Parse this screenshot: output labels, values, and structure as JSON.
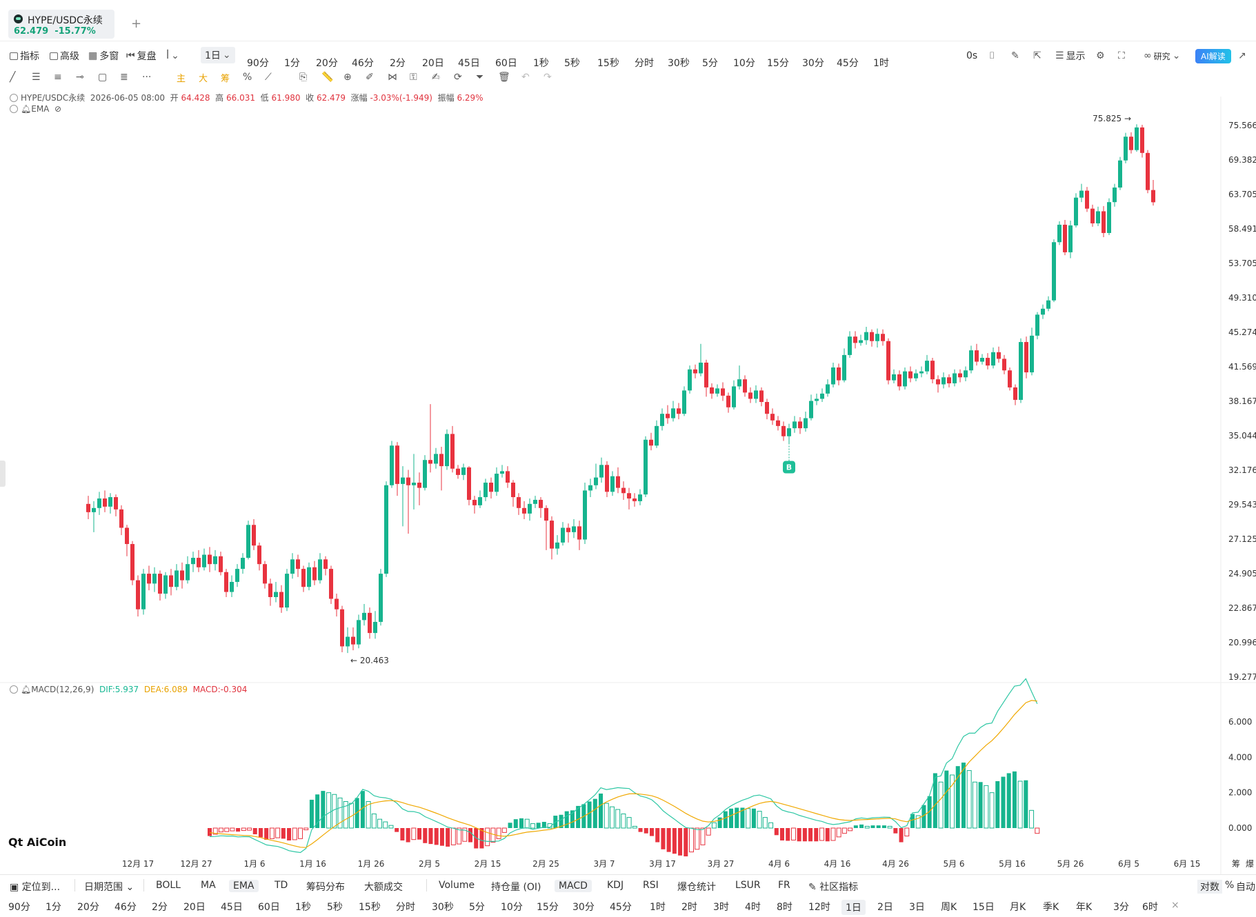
{
  "tab": {
    "title": "HYPE/USDC永续",
    "price": "62.479",
    "change": "-15.77%",
    "add": "+"
  },
  "toolbar1": {
    "indicator": "指标",
    "advanced": "高级",
    "multiwin": "多窗",
    "replay": "复盘",
    "interval_selected": "1日",
    "intervals": [
      "90分",
      "1分",
      "20分",
      "46分",
      "2分",
      "20日",
      "45日",
      "60日",
      "1秒",
      "5秒",
      "15秒",
      "分时",
      "30秒",
      "5分",
      "10分",
      "15分",
      "30分",
      "45分",
      "1时"
    ],
    "seconds": "0s",
    "display": "显示",
    "research": "研究",
    "ai": "AI解读"
  },
  "toolbar2": {
    "main": "主",
    "big": "大",
    "chip": "筹",
    "more": "···"
  },
  "info": {
    "symbol": "HYPE/USDC永续",
    "datetime": "2026-06-05 08:00",
    "open_label": "开",
    "open": "64.428",
    "high_label": "高",
    "high": "66.031",
    "low_label": "低",
    "low": "61.980",
    "close_label": "收",
    "close": "62.479",
    "change_label": "涨幅",
    "change": "-3.03%(-1.949)",
    "amp_label": "振幅",
    "amp": "6.29%",
    "ema": "EMA"
  },
  "macd_info": {
    "name": "MACD(12,26,9)",
    "dif": "DIF:5.937",
    "dea": "DEA:6.089",
    "macd": "MACD:-0.304"
  },
  "chart_data": {
    "type": "candlestick",
    "y_ticks": [
      "75.566",
      "69.382",
      "63.705",
      "58.491",
      "53.705",
      "49.310",
      "45.274",
      "41.569",
      "38.167",
      "35.044",
      "32.176",
      "29.543",
      "27.125",
      "24.905",
      "22.867",
      "20.996",
      "19.277"
    ],
    "macd_ticks": [
      "6.000",
      "4.000",
      "2.000",
      "0.000"
    ],
    "x_ticks": [
      "12月 17",
      "12月 27",
      "1月 6",
      "1月 16",
      "1月 26",
      "2月 5",
      "2月 15",
      "2月 25",
      "3月 7",
      "3月 17",
      "3月 27",
      "4月 6",
      "4月 16",
      "4月 26",
      "5月 6",
      "5月 16",
      "5月 26",
      "6月 5",
      "6月 15"
    ],
    "max_label": "75.825",
    "min_label": "20.463",
    "buy_marker": "B",
    "candles": [
      [
        29.6,
        29.0,
        30.2,
        28.5
      ],
      [
        29.0,
        29.3,
        29.8,
        27.6
      ],
      [
        29.3,
        30.0,
        30.5,
        28.8
      ],
      [
        30.0,
        29.4,
        30.6,
        29.0
      ],
      [
        29.4,
        30.1,
        30.4,
        28.9
      ],
      [
        30.1,
        29.2,
        30.3,
        28.7
      ],
      [
        29.2,
        27.9,
        29.5,
        27.4
      ],
      [
        27.9,
        26.8,
        28.1,
        26.0
      ],
      [
        26.8,
        24.5,
        27.0,
        24.2
      ],
      [
        24.5,
        22.8,
        24.8,
        22.4
      ],
      [
        22.8,
        24.9,
        25.2,
        22.5
      ],
      [
        24.9,
        24.3,
        25.4,
        23.9
      ],
      [
        24.3,
        24.9,
        25.3,
        23.8
      ],
      [
        24.9,
        23.7,
        25.1,
        23.3
      ],
      [
        23.7,
        24.8,
        25.0,
        23.4
      ],
      [
        24.8,
        24.1,
        25.2,
        23.6
      ],
      [
        24.1,
        25.1,
        25.5,
        23.9
      ],
      [
        25.1,
        24.5,
        25.6,
        24.0
      ],
      [
        24.5,
        25.5,
        26.0,
        24.3
      ],
      [
        25.5,
        25.9,
        26.3,
        25.0
      ],
      [
        25.9,
        25.3,
        26.4,
        25.0
      ],
      [
        25.3,
        26.1,
        26.5,
        25.1
      ],
      [
        26.1,
        25.5,
        26.6,
        25.0
      ],
      [
        25.5,
        26.0,
        26.4,
        25.1
      ],
      [
        26.0,
        25.0,
        26.3,
        24.8
      ],
      [
        25.0,
        23.8,
        25.2,
        23.5
      ],
      [
        23.8,
        24.4,
        24.8,
        23.5
      ],
      [
        24.4,
        25.2,
        25.5,
        24.1
      ],
      [
        25.2,
        25.9,
        26.2,
        24.9
      ],
      [
        25.9,
        28.1,
        28.4,
        25.8
      ],
      [
        28.1,
        26.7,
        28.5,
        26.4
      ],
      [
        26.7,
        25.5,
        26.9,
        25.1
      ],
      [
        25.5,
        24.3,
        25.7,
        24.0
      ],
      [
        24.3,
        23.5,
        24.6,
        23.0
      ],
      [
        23.5,
        23.8,
        24.4,
        23.2
      ],
      [
        23.8,
        22.9,
        24.2,
        22.6
      ],
      [
        22.9,
        24.9,
        25.2,
        22.7
      ],
      [
        24.9,
        25.8,
        26.2,
        24.6
      ],
      [
        25.8,
        25.2,
        26.1,
        24.7
      ],
      [
        25.2,
        24.1,
        25.4,
        23.8
      ],
      [
        24.1,
        25.3,
        25.6,
        23.9
      ],
      [
        25.3,
        24.5,
        25.7,
        24.2
      ],
      [
        24.5,
        25.8,
        26.2,
        24.3
      ],
      [
        25.8,
        25.2,
        26.0,
        24.8
      ],
      [
        25.2,
        23.4,
        25.4,
        23.1
      ],
      [
        23.4,
        22.8,
        23.7,
        22.4
      ],
      [
        22.8,
        20.8,
        23.0,
        20.5
      ],
      [
        20.8,
        21.3,
        21.8,
        20.46
      ],
      [
        21.3,
        20.9,
        21.8,
        20.6
      ],
      [
        20.9,
        22.2,
        22.5,
        20.7
      ],
      [
        22.2,
        22.6,
        23.1,
        21.9
      ],
      [
        22.6,
        21.5,
        22.9,
        21.2
      ],
      [
        21.5,
        22.1,
        22.7,
        21.2
      ],
      [
        22.1,
        24.9,
        25.2,
        21.9
      ],
      [
        24.9,
        31.0,
        31.3,
        24.7
      ],
      [
        31.0,
        34.2,
        34.6,
        30.8
      ],
      [
        34.2,
        31.1,
        34.5,
        30.2
      ],
      [
        31.1,
        31.6,
        32.5,
        28.0
      ],
      [
        31.6,
        31.0,
        32.2,
        27.5
      ],
      [
        31.0,
        31.2,
        33.5,
        29.2
      ],
      [
        31.2,
        30.8,
        32.0,
        29.5
      ],
      [
        30.8,
        33.0,
        33.4,
        30.6
      ],
      [
        33.0,
        32.7,
        37.9,
        32.0
      ],
      [
        32.7,
        33.5,
        34.0,
        32.3
      ],
      [
        33.5,
        32.5,
        34.1,
        30.6
      ],
      [
        32.5,
        35.2,
        35.6,
        32.2
      ],
      [
        35.2,
        32.3,
        35.9,
        32.0
      ],
      [
        32.3,
        31.8,
        32.6,
        31.5
      ],
      [
        31.8,
        32.4,
        32.7,
        31.4
      ],
      [
        32.4,
        29.9,
        32.5,
        29.5
      ],
      [
        29.9,
        29.5,
        30.2,
        28.9
      ],
      [
        29.5,
        30.1,
        30.6,
        29.3
      ],
      [
        30.1,
        31.2,
        31.5,
        29.8
      ],
      [
        31.2,
        30.5,
        31.6,
        30.0
      ],
      [
        30.5,
        31.9,
        32.4,
        30.2
      ],
      [
        31.9,
        32.1,
        32.6,
        31.6
      ],
      [
        32.1,
        31.2,
        32.5,
        30.8
      ],
      [
        31.2,
        30.1,
        31.4,
        29.4
      ],
      [
        30.1,
        29.3,
        30.4,
        28.8
      ],
      [
        29.3,
        28.9,
        29.8,
        28.5
      ],
      [
        28.9,
        29.6,
        30.0,
        28.4
      ],
      [
        29.6,
        29.9,
        30.2,
        29.3
      ],
      [
        29.9,
        29.3,
        30.1,
        28.6
      ],
      [
        29.3,
        28.4,
        29.5,
        26.4
      ],
      [
        28.4,
        26.5,
        28.7,
        25.8
      ],
      [
        26.5,
        26.9,
        27.4,
        26.1
      ],
      [
        26.9,
        27.9,
        28.3,
        26.7
      ],
      [
        27.9,
        27.6,
        28.2,
        26.9
      ],
      [
        27.6,
        28.0,
        28.5,
        27.2
      ],
      [
        28.0,
        27.1,
        28.4,
        26.4
      ],
      [
        27.1,
        30.6,
        31.2,
        26.8
      ],
      [
        30.6,
        31.0,
        31.5,
        30.1
      ],
      [
        31.0,
        31.6,
        32.7,
        30.7
      ],
      [
        31.6,
        32.6,
        33.2,
        31.2
      ],
      [
        32.6,
        30.5,
        32.9,
        30.1
      ],
      [
        30.5,
        31.7,
        32.1,
        30.2
      ],
      [
        31.7,
        30.8,
        32.4,
        30.4
      ],
      [
        30.8,
        30.4,
        31.3,
        29.9
      ],
      [
        30.4,
        30.0,
        30.8,
        29.2
      ],
      [
        30.0,
        29.8,
        30.4,
        29.4
      ],
      [
        29.8,
        30.3,
        30.7,
        29.5
      ],
      [
        30.3,
        34.7,
        35.0,
        30.1
      ],
      [
        34.7,
        34.2,
        35.3,
        33.8
      ],
      [
        34.2,
        35.9,
        36.4,
        34.0
      ],
      [
        35.9,
        37.0,
        37.5,
        35.5
      ],
      [
        37.0,
        36.6,
        37.8,
        36.1
      ],
      [
        36.6,
        37.5,
        38.2,
        36.3
      ],
      [
        37.5,
        37.0,
        38.0,
        36.5
      ],
      [
        37.0,
        39.2,
        39.6,
        36.8
      ],
      [
        39.2,
        41.3,
        41.7,
        38.9
      ],
      [
        41.3,
        40.9,
        41.8,
        40.4
      ],
      [
        40.9,
        42.0,
        44.0,
        40.6
      ],
      [
        42.0,
        39.5,
        42.3,
        38.6
      ],
      [
        39.5,
        38.9,
        39.9,
        38.4
      ],
      [
        38.9,
        39.4,
        39.8,
        38.6
      ],
      [
        39.4,
        38.7,
        40.0,
        38.2
      ],
      [
        38.7,
        37.6,
        39.0,
        37.1
      ],
      [
        37.6,
        39.6,
        40.2,
        37.4
      ],
      [
        39.6,
        40.3,
        41.7,
        39.3
      ],
      [
        40.3,
        39.0,
        40.7,
        38.6
      ],
      [
        39.0,
        38.4,
        39.5,
        38.0
      ],
      [
        38.4,
        39.2,
        39.7,
        38.0
      ],
      [
        39.2,
        38.1,
        39.5,
        37.7
      ],
      [
        38.1,
        37.0,
        38.4,
        36.5
      ],
      [
        37.0,
        36.4,
        37.5,
        36.0
      ],
      [
        36.4,
        35.9,
        36.8,
        35.5
      ],
      [
        35.9,
        35.0,
        36.3,
        34.6
      ],
      [
        35.0,
        35.7,
        36.1,
        34.3
      ],
      [
        35.7,
        36.3,
        36.8,
        35.3
      ],
      [
        36.3,
        35.7,
        36.7,
        35.2
      ],
      [
        35.7,
        36.6,
        37.2,
        35.4
      ],
      [
        36.6,
        38.2,
        38.8,
        36.4
      ],
      [
        38.2,
        38.4,
        38.9,
        37.8
      ],
      [
        38.4,
        38.9,
        39.4,
        38.1
      ],
      [
        38.9,
        39.8,
        40.3,
        38.6
      ],
      [
        39.8,
        41.5,
        42.0,
        39.5
      ],
      [
        41.5,
        40.2,
        41.9,
        39.7
      ],
      [
        40.2,
        42.8,
        43.5,
        40.0
      ],
      [
        42.8,
        44.8,
        45.4,
        42.5
      ],
      [
        44.8,
        44.1,
        45.4,
        43.5
      ],
      [
        44.1,
        44.4,
        45.0,
        43.8
      ],
      [
        44.4,
        45.3,
        45.9,
        43.9
      ],
      [
        45.3,
        44.3,
        45.6,
        43.7
      ],
      [
        44.3,
        45.1,
        45.7,
        43.6
      ],
      [
        45.1,
        44.3,
        45.6,
        43.8
      ],
      [
        44.3,
        40.2,
        44.6,
        39.8
      ],
      [
        40.2,
        40.8,
        41.3,
        39.9
      ],
      [
        40.8,
        39.6,
        41.2,
        39.2
      ],
      [
        39.6,
        41.1,
        41.5,
        39.3
      ],
      [
        41.1,
        40.4,
        41.6,
        40.0
      ],
      [
        40.4,
        40.9,
        41.3,
        40.1
      ],
      [
        40.9,
        41.1,
        41.6,
        40.5
      ],
      [
        41.1,
        42.2,
        42.8,
        40.8
      ],
      [
        42.2,
        40.3,
        42.5,
        39.9
      ],
      [
        40.3,
        39.8,
        40.7,
        39.0
      ],
      [
        39.8,
        40.5,
        41.0,
        39.4
      ],
      [
        40.5,
        39.9,
        40.8,
        39.5
      ],
      [
        39.9,
        40.9,
        41.3,
        39.6
      ],
      [
        40.9,
        40.5,
        41.3,
        40.0
      ],
      [
        40.5,
        41.2,
        41.6,
        40.1
      ],
      [
        41.2,
        43.3,
        43.8,
        40.9
      ],
      [
        43.3,
        42.1,
        44.0,
        41.7
      ],
      [
        42.1,
        42.5,
        42.9,
        41.8
      ],
      [
        42.5,
        41.7,
        43.0,
        41.3
      ],
      [
        41.7,
        43.1,
        43.6,
        41.4
      ],
      [
        43.1,
        42.4,
        43.7,
        42.0
      ],
      [
        42.4,
        41.2,
        42.8,
        40.8
      ],
      [
        41.2,
        39.5,
        41.5,
        39.2
      ],
      [
        39.5,
        38.3,
        39.8,
        37.8
      ],
      [
        38.3,
        44.2,
        44.6,
        38.0
      ],
      [
        44.2,
        41.0,
        44.8,
        40.4
      ],
      [
        41.0,
        44.9,
        45.8,
        40.7
      ],
      [
        44.9,
        47.3,
        47.6,
        44.5
      ],
      [
        47.3,
        48.0,
        48.5,
        46.8
      ],
      [
        48.0,
        49.0,
        49.5,
        47.7
      ],
      [
        49.0,
        56.6,
        57.0,
        48.8
      ],
      [
        56.6,
        59.1,
        59.6,
        56.2
      ],
      [
        59.1,
        55.2,
        59.8,
        54.8
      ],
      [
        55.2,
        59.0,
        59.7,
        54.4
      ],
      [
        59.0,
        63.2,
        63.9,
        58.7
      ],
      [
        63.2,
        64.3,
        65.4,
        62.5
      ],
      [
        64.3,
        61.5,
        64.9,
        61.0
      ],
      [
        61.5,
        59.3,
        62.1,
        58.8
      ],
      [
        59.3,
        61.1,
        61.8,
        58.9
      ],
      [
        61.1,
        57.9,
        61.9,
        57.3
      ],
      [
        57.9,
        62.5,
        63.1,
        57.6
      ],
      [
        62.5,
        64.8,
        65.4,
        61.8
      ],
      [
        64.8,
        69.3,
        69.9,
        64.4
      ],
      [
        69.3,
        73.5,
        74.2,
        68.8
      ],
      [
        73.5,
        71.1,
        74.3,
        70.5
      ],
      [
        71.1,
        75.2,
        75.8,
        70.8
      ],
      [
        75.2,
        70.6,
        75.7,
        69.8
      ],
      [
        70.6,
        64.4,
        71.1,
        63.9
      ],
      [
        64.4,
        62.48,
        66.03,
        61.98
      ]
    ],
    "macd_hist": [
      -0.45,
      -0.35,
      -0.22,
      -0.2,
      -0.16,
      -0.2,
      -0.14,
      -0.12,
      -0.35,
      -0.52,
      -0.66,
      -0.6,
      -0.55,
      -0.6,
      -0.7,
      -0.66,
      -0.6,
      -0.1,
      1.6,
      1.9,
      2.1,
      2.0,
      1.9,
      1.7,
      1.5,
      1.4,
      1.7,
      2.1,
      1.5,
      0.8,
      0.5,
      0.35,
      0.15,
      -0.22,
      -0.7,
      -0.8,
      -0.65,
      -0.65,
      -0.85,
      -0.9,
      -0.95,
      -1.0,
      -1.05,
      -0.95,
      -0.9,
      -0.75,
      -0.8,
      -1.15,
      -1.15,
      -1.0,
      -0.8,
      -0.6,
      -0.25,
      0.3,
      0.5,
      0.55,
      0.5,
      0.25,
      0.3,
      0.35,
      0.25,
      0.7,
      0.75,
      0.95,
      1.0,
      1.25,
      1.35,
      1.5,
      1.65,
      1.95,
      1.4,
      1.2,
      1.05,
      0.8,
      0.6,
      0.1,
      -0.22,
      -0.3,
      -0.45,
      -0.8,
      -1.2,
      -1.35,
      -1.45,
      -1.55,
      -1.6,
      -1.35,
      -1.2,
      -0.95,
      -0.4,
      0.3,
      0.6,
      0.95,
      1.1,
      1.15,
      1.15,
      1.1,
      1.1,
      0.95,
      0.6,
      0.3,
      -0.4,
      -0.7,
      -0.72,
      -0.68,
      -0.75,
      -0.75,
      -0.75,
      -0.75,
      -0.7,
      -0.75,
      -0.7,
      -0.5,
      -0.3,
      -0.15,
      0.15,
      0.2,
      0.1,
      0.15,
      0.15,
      0.15,
      0.1,
      -0.3,
      -0.8,
      -0.45,
      0.8,
      0.7,
      1.3,
      1.8,
      3.1,
      2.6,
      3.25,
      3.0,
      3.5,
      3.7,
      3.25,
      2.6,
      2.6,
      2.4,
      2.0,
      2.65,
      2.9,
      3.1,
      3.2,
      2.65,
      2.7,
      1.0,
      -0.3
    ]
  },
  "bottom_bar1": {
    "locate": "定位到...",
    "date_range": "日期范围",
    "indicators": [
      "BOLL",
      "MA",
      "EMA",
      "TD",
      "筹码分布",
      "大额成交"
    ],
    "selected_main": "EMA",
    "sub_indicators": [
      "Volume",
      "持仓量 (OI)",
      "MACD",
      "KDJ",
      "RSI",
      "爆仓统计",
      "LSUR",
      "FR"
    ],
    "selected_sub": "MACD",
    "community": "社区指标",
    "log": "对数",
    "percent": "%",
    "auto": "自动"
  },
  "bottom_bar2": {
    "intervals": [
      "90分",
      "1分",
      "20分",
      "46分",
      "2分",
      "20日",
      "45日",
      "60日",
      "1秒",
      "5秒",
      "15秒",
      "分时",
      "30秒",
      "5分",
      "10分",
      "15分",
      "30分",
      "45分",
      "1时",
      "2时",
      "3时",
      "4时",
      "8时",
      "12时",
      "1日",
      "2日",
      "3日",
      "周K",
      "15日",
      "月K",
      "季K",
      "年K",
      "3分",
      "6时"
    ],
    "selected": "1日",
    "close": "×"
  },
  "right_labels": {
    "chip": "筹",
    "burst": "爆"
  },
  "logo": "AiCoin",
  "colors": {
    "up": "#16b48e",
    "down": "#e8333f",
    "dif": "#2ec7a4",
    "dea": "#f0a800"
  }
}
